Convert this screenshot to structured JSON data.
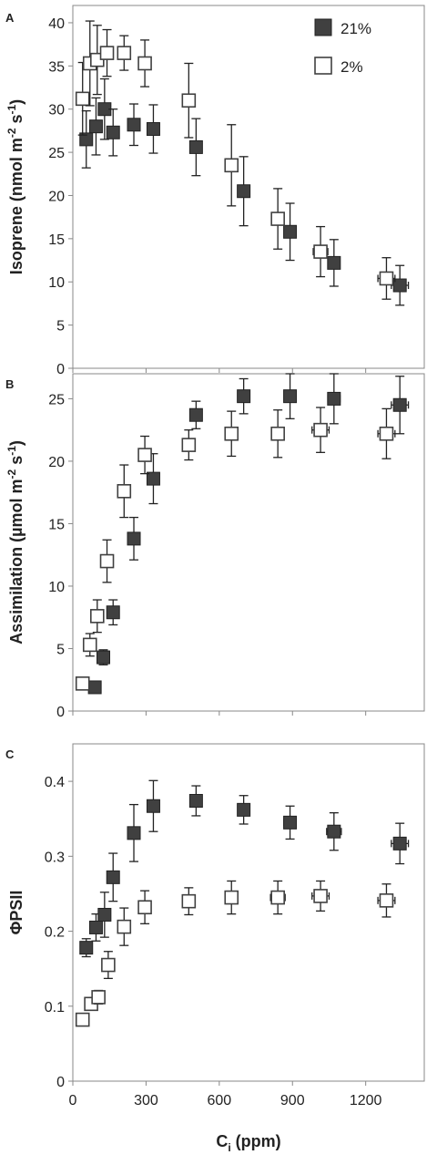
{
  "chart_data": [
    {
      "panel": "A",
      "type": "scatter",
      "ylabel": "Isoprene (nmol m-2 s-1)",
      "ylabel_parts": [
        "Isoprene (nmol m",
        "-2",
        " s",
        "-1",
        ")"
      ],
      "ylim": [
        0,
        42
      ],
      "yticks": [
        0,
        5,
        10,
        15,
        20,
        25,
        30,
        35,
        40
      ],
      "xlim": [
        0,
        1440
      ],
      "xticks": [
        0,
        300,
        600,
        900,
        1200
      ],
      "legend_placement": "top-right",
      "series": [
        {
          "name": "21%",
          "marker": "filled-square",
          "color": "#404040",
          "points": [
            {
              "x": 55,
              "y": 26.5,
              "yerr": 3.3,
              "xerr": 12
            },
            {
              "x": 95,
              "y": 28.0,
              "yerr": 3.3,
              "xerr": 12
            },
            {
              "x": 130,
              "y": 30.0,
              "yerr": 3.5,
              "xerr": 12
            },
            {
              "x": 165,
              "y": 27.3,
              "yerr": 2.7,
              "xerr": 12
            },
            {
              "x": 250,
              "y": 28.2,
              "yerr": 2.4,
              "xerr": 12
            },
            {
              "x": 330,
              "y": 27.7,
              "yerr": 2.8,
              "xerr": 12
            },
            {
              "x": 505,
              "y": 25.6,
              "yerr": 3.3,
              "xerr": 12
            },
            {
              "x": 700,
              "y": 20.5,
              "yerr": 4.0,
              "xerr": 12
            },
            {
              "x": 890,
              "y": 15.8,
              "yerr": 3.3,
              "xerr": 20
            },
            {
              "x": 1070,
              "y": 12.2,
              "yerr": 2.7,
              "xerr": 20
            },
            {
              "x": 1340,
              "y": 9.6,
              "yerr": 2.3,
              "xerr": 35
            }
          ]
        },
        {
          "name": "2%",
          "marker": "open-square",
          "color": "#404040",
          "points": [
            {
              "x": 40,
              "y": 31.2,
              "yerr": 4.2,
              "xerr": 10
            },
            {
              "x": 70,
              "y": 35.3,
              "yerr": 4.9,
              "xerr": 10
            },
            {
              "x": 100,
              "y": 35.7,
              "yerr": 4.0,
              "xerr": 10
            },
            {
              "x": 140,
              "y": 36.5,
              "yerr": 2.7,
              "xerr": 10
            },
            {
              "x": 210,
              "y": 36.5,
              "yerr": 2.0,
              "xerr": 10
            },
            {
              "x": 295,
              "y": 35.3,
              "yerr": 2.7,
              "xerr": 12
            },
            {
              "x": 475,
              "y": 31.0,
              "yerr": 4.3,
              "xerr": 15
            },
            {
              "x": 650,
              "y": 23.5,
              "yerr": 4.7,
              "xerr": 20
            },
            {
              "x": 840,
              "y": 17.3,
              "yerr": 3.5,
              "xerr": 20
            },
            {
              "x": 1015,
              "y": 13.5,
              "yerr": 2.9,
              "xerr": 30
            },
            {
              "x": 1285,
              "y": 10.4,
              "yerr": 2.4,
              "xerr": 35
            }
          ]
        }
      ]
    },
    {
      "panel": "B",
      "type": "scatter",
      "ylabel": "Assimilation (µmol m-2 s-1)",
      "ylabel_parts": [
        "Assimilation (µmol m",
        "-2",
        " s",
        "-1",
        ")"
      ],
      "ylim": [
        0,
        27
      ],
      "yticks": [
        0,
        5,
        10,
        15,
        20,
        25
      ],
      "xlim": [
        0,
        1440
      ],
      "xticks": [
        0,
        300,
        600,
        900,
        1200
      ],
      "series": [
        {
          "name": "21%",
          "marker": "filled-square",
          "color": "#404040",
          "points": [
            {
              "x": 90,
              "y": 1.9,
              "yerr": 0.3,
              "xerr": 10
            },
            {
              "x": 125,
              "y": 4.3,
              "yerr": 0.6,
              "xerr": 10
            },
            {
              "x": 165,
              "y": 7.9,
              "yerr": 1.0,
              "xerr": 10
            },
            {
              "x": 250,
              "y": 13.8,
              "yerr": 1.7,
              "xerr": 12
            },
            {
              "x": 330,
              "y": 18.6,
              "yerr": 2.0,
              "xerr": 12
            },
            {
              "x": 505,
              "y": 23.7,
              "yerr": 1.1,
              "xerr": 12
            },
            {
              "x": 700,
              "y": 25.2,
              "yerr": 1.4,
              "xerr": 15
            },
            {
              "x": 890,
              "y": 25.2,
              "yerr": 1.8,
              "xerr": 20
            },
            {
              "x": 1070,
              "y": 25.0,
              "yerr": 2.0,
              "xerr": 25
            },
            {
              "x": 1340,
              "y": 24.5,
              "yerr": 2.3,
              "xerr": 35
            }
          ]
        },
        {
          "name": "2%",
          "marker": "open-square",
          "color": "#404040",
          "points": [
            {
              "x": 40,
              "y": 2.2,
              "yerr": 0.3,
              "xerr": 10
            },
            {
              "x": 70,
              "y": 5.3,
              "yerr": 0.9,
              "xerr": 10
            },
            {
              "x": 100,
              "y": 7.6,
              "yerr": 1.3,
              "xerr": 10
            },
            {
              "x": 140,
              "y": 12.0,
              "yerr": 1.7,
              "xerr": 10
            },
            {
              "x": 210,
              "y": 17.6,
              "yerr": 2.1,
              "xerr": 12
            },
            {
              "x": 295,
              "y": 20.5,
              "yerr": 1.5,
              "xerr": 12
            },
            {
              "x": 475,
              "y": 21.3,
              "yerr": 1.2,
              "xerr": 15
            },
            {
              "x": 650,
              "y": 22.2,
              "yerr": 1.8,
              "xerr": 20
            },
            {
              "x": 840,
              "y": 22.2,
              "yerr": 1.9,
              "xerr": 25
            },
            {
              "x": 1015,
              "y": 22.5,
              "yerr": 1.8,
              "xerr": 35
            },
            {
              "x": 1285,
              "y": 22.2,
              "yerr": 2.0,
              "xerr": 35
            }
          ]
        }
      ]
    },
    {
      "panel": "C",
      "type": "scatter",
      "ylabel": "ΦPSII",
      "ylabel_parts": [
        "ΦPSII"
      ],
      "ylim": [
        0,
        0.45
      ],
      "yticks": [
        0,
        0.1,
        0.2,
        0.3,
        0.4
      ],
      "ytick_labels": [
        "0",
        "0.1",
        "0.2",
        "0.3",
        "0.4"
      ],
      "xlim": [
        0,
        1440
      ],
      "xticks": [
        0,
        300,
        600,
        900,
        1200
      ],
      "xlabel": "Ci (ppm)",
      "xlabel_parts": [
        "C",
        "i",
        " (ppm)"
      ],
      "series": [
        {
          "name": "21%",
          "marker": "filled-square",
          "color": "#404040",
          "points": [
            {
              "x": 55,
              "y": 0.178,
              "yerr": 0.012,
              "xerr": 10
            },
            {
              "x": 95,
              "y": 0.205,
              "yerr": 0.018,
              "xerr": 10
            },
            {
              "x": 130,
              "y": 0.222,
              "yerr": 0.03,
              "xerr": 10
            },
            {
              "x": 165,
              "y": 0.272,
              "yerr": 0.032,
              "xerr": 12
            },
            {
              "x": 250,
              "y": 0.331,
              "yerr": 0.038,
              "xerr": 12
            },
            {
              "x": 330,
              "y": 0.367,
              "yerr": 0.034,
              "xerr": 12
            },
            {
              "x": 505,
              "y": 0.374,
              "yerr": 0.02,
              "xerr": 15
            },
            {
              "x": 700,
              "y": 0.362,
              "yerr": 0.019,
              "xerr": 20
            },
            {
              "x": 890,
              "y": 0.345,
              "yerr": 0.022,
              "xerr": 25
            },
            {
              "x": 1070,
              "y": 0.333,
              "yerr": 0.025,
              "xerr": 30
            },
            {
              "x": 1340,
              "y": 0.317,
              "yerr": 0.027,
              "xerr": 35
            }
          ]
        },
        {
          "name": "2%",
          "marker": "open-square",
          "color": "#404040",
          "points": [
            {
              "x": 40,
              "y": 0.082,
              "yerr": 0.004,
              "xerr": 12
            },
            {
              "x": 75,
              "y": 0.103,
              "yerr": 0.005,
              "xerr": 12
            },
            {
              "x": 105,
              "y": 0.112,
              "yerr": 0.009,
              "xerr": 12
            },
            {
              "x": 145,
              "y": 0.155,
              "yerr": 0.018,
              "xerr": 12
            },
            {
              "x": 210,
              "y": 0.206,
              "yerr": 0.025,
              "xerr": 15
            },
            {
              "x": 295,
              "y": 0.232,
              "yerr": 0.022,
              "xerr": 15
            },
            {
              "x": 475,
              "y": 0.24,
              "yerr": 0.018,
              "xerr": 20
            },
            {
              "x": 650,
              "y": 0.245,
              "yerr": 0.022,
              "xerr": 25
            },
            {
              "x": 840,
              "y": 0.245,
              "yerr": 0.022,
              "xerr": 30
            },
            {
              "x": 1015,
              "y": 0.247,
              "yerr": 0.02,
              "xerr": 35
            },
            {
              "x": 1285,
              "y": 0.241,
              "yerr": 0.022,
              "xerr": 35
            }
          ]
        }
      ]
    }
  ]
}
